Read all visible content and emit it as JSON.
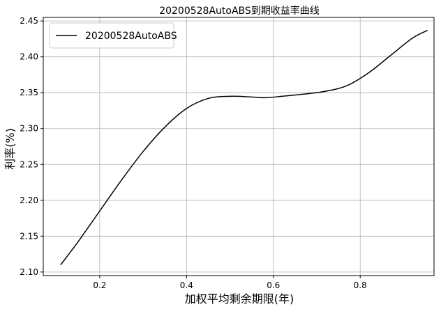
{
  "chart_data": {
    "type": "line",
    "title": "20200528AutoABS到期收益率曲线",
    "xlabel": "加权平均剩余期限(年)",
    "ylabel": "利率(%)",
    "xlim": [
      0.07,
      0.97
    ],
    "ylim": [
      2.095,
      2.455
    ],
    "xticks": [
      0.2,
      0.4,
      0.6,
      0.8
    ],
    "xtick_labels": [
      "0.2",
      "0.4",
      "0.6",
      "0.8"
    ],
    "yticks": [
      2.1,
      2.15,
      2.2,
      2.25,
      2.3,
      2.35,
      2.4,
      2.45
    ],
    "ytick_labels": [
      "2.10",
      "2.15",
      "2.20",
      "2.25",
      "2.30",
      "2.35",
      "2.40",
      "2.45"
    ],
    "grid": true,
    "legend_position": "top-left",
    "colors": {
      "series": "#000000",
      "grid": "#b0b0b0"
    },
    "series": [
      {
        "name": "20200528AutoABS",
        "x": [
          0.11,
          0.15,
          0.2,
          0.25,
          0.3,
          0.35,
          0.4,
          0.45,
          0.5,
          0.55,
          0.58,
          0.62,
          0.67,
          0.72,
          0.77,
          0.82,
          0.87,
          0.92,
          0.955
        ],
        "y": [
          2.11,
          2.142,
          2.185,
          2.228,
          2.268,
          2.302,
          2.328,
          2.342,
          2.345,
          2.344,
          2.343,
          2.345,
          2.348,
          2.352,
          2.36,
          2.378,
          2.402,
          2.426,
          2.437
        ]
      }
    ]
  }
}
